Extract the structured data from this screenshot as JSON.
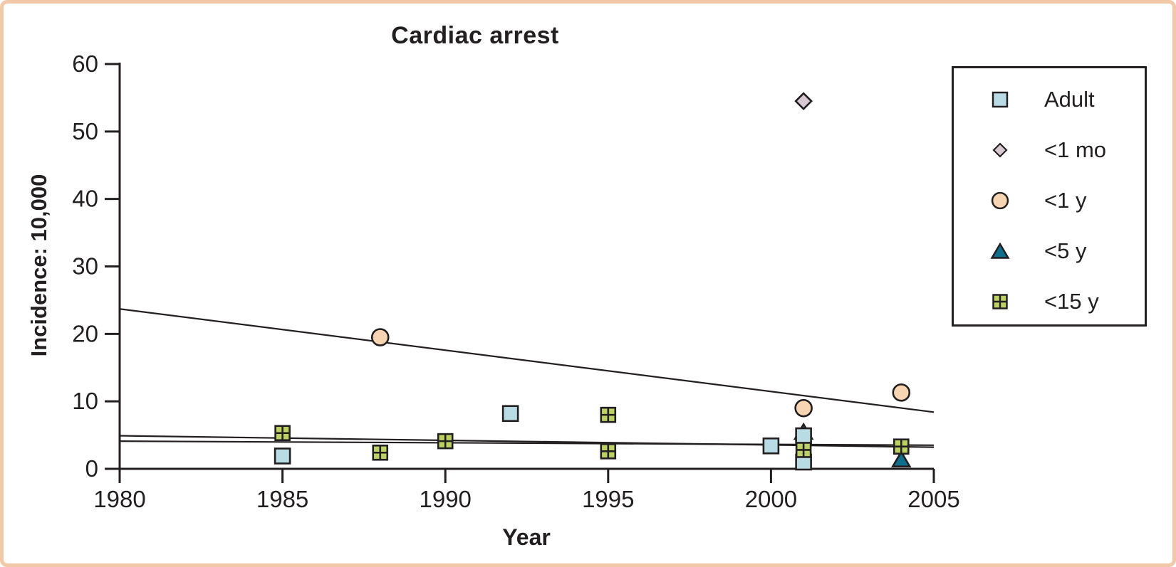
{
  "chart_data": {
    "type": "scatter",
    "title": "Cardiac arrest",
    "xlabel": "Year",
    "ylabel": "Incidence: 10,000",
    "xlim": [
      1980,
      2005
    ],
    "ylim": [
      0,
      60
    ],
    "x_ticks": [
      1980,
      1985,
      1990,
      1995,
      2000,
      2005
    ],
    "y_ticks": [
      0,
      10,
      20,
      30,
      40,
      50,
      60
    ],
    "grid": false,
    "legend_position": "outside-right",
    "colors": {
      "ink": "#231f20",
      "frame": "#f2c9a8",
      "adult_fill": "#b9dbe4",
      "lt1mo_fill": "#d8c8d2",
      "lt1y_fill": "#f7d5b3",
      "lt5y_fill": "#0f6f8c",
      "lt15y_fill": "#bcd265"
    },
    "series": [
      {
        "name": "Adult",
        "marker": "square",
        "fill": "#b9dbe4",
        "points": [
          [
            1985,
            1.9
          ],
          [
            1992,
            8.2
          ],
          [
            2000,
            3.4
          ],
          [
            2001,
            4.9
          ],
          [
            2001,
            1.0
          ]
        ]
      },
      {
        "name": "<1 mo",
        "marker": "diamond",
        "fill": "#d8c8d2",
        "points": [
          [
            2001,
            54.5
          ]
        ]
      },
      {
        "name": "<1 y",
        "marker": "circle",
        "fill": "#f7d5b3",
        "points": [
          [
            1988,
            19.5
          ],
          [
            2001,
            9.0
          ],
          [
            2004,
            11.3
          ]
        ]
      },
      {
        "name": "<5 y",
        "marker": "triangle",
        "fill": "#0f6f8c",
        "points": [
          [
            2001,
            5.5
          ],
          [
            2004,
            1.4
          ]
        ]
      },
      {
        "name": "<15 y",
        "marker": "grid-square",
        "fill": "#bcd265",
        "points": [
          [
            1985,
            5.3
          ],
          [
            1988,
            2.4
          ],
          [
            1990,
            4.1
          ],
          [
            1995,
            8.0
          ],
          [
            1995,
            2.6
          ],
          [
            2001,
            2.8
          ],
          [
            2004,
            3.3
          ]
        ]
      }
    ],
    "trend_lines": [
      {
        "name": "infant-trend",
        "from": [
          1980,
          23.7
        ],
        "to": [
          2005,
          8.4
        ]
      },
      {
        "name": "flat-trend-upper",
        "from": [
          1980,
          4.9
        ],
        "to": [
          2005,
          3.2
        ]
      },
      {
        "name": "flat-trend-lower",
        "from": [
          1980,
          4.1
        ],
        "to": [
          2005,
          3.5
        ]
      }
    ]
  }
}
